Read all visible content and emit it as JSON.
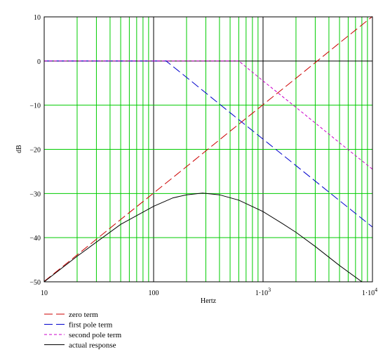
{
  "chart_data": {
    "type": "line",
    "xscale": "log",
    "xlim": [
      10,
      10000
    ],
    "ylim": [
      -50,
      10
    ],
    "xlabel": "Hertz",
    "ylabel": "dB",
    "grid": true,
    "grid_color": "#00cc00",
    "legend_position": "bottom-left",
    "x_tick_labels": [
      {
        "value": 10,
        "label": "10"
      },
      {
        "value": 100,
        "label": "100"
      },
      {
        "value": 1000,
        "label": "1·10",
        "exp": "3"
      },
      {
        "value": 10000,
        "label": "1·10",
        "exp": "4"
      }
    ],
    "y_ticks": [
      {
        "value": 10,
        "label": "10"
      },
      {
        "value": 0,
        "label": "0"
      },
      {
        "value": -10,
        "label": "−10"
      },
      {
        "value": -20,
        "label": "−20"
      },
      {
        "value": -30,
        "label": "−30"
      },
      {
        "value": -40,
        "label": "−40"
      },
      {
        "value": -50,
        "label": "−50"
      }
    ],
    "series": [
      {
        "name": "zero term",
        "color": "#cc0000",
        "dash": "long-dash",
        "x": [
          10,
          20,
          50,
          100,
          200,
          500,
          1000,
          2000,
          5000,
          10000
        ],
        "y": [
          -49.9,
          -43.9,
          -35.9,
          -29.9,
          -23.9,
          -15.9,
          -9.9,
          -3.9,
          4.1,
          10.1
        ]
      },
      {
        "name": "first pole term",
        "color": "#0000cc",
        "dash": "long-dash",
        "x": [
          10,
          50,
          100,
          130,
          200,
          500,
          1000,
          2000,
          5000,
          10000
        ],
        "y": [
          0,
          0,
          0,
          0,
          -3.7,
          -11.7,
          -17.7,
          -23.7,
          -31.6,
          -37.6
        ]
      },
      {
        "name": "second pole term",
        "color": "#cc00cc",
        "dash": "short-dash",
        "x": [
          10,
          100,
          500,
          600,
          1000,
          2000,
          5000,
          10000
        ],
        "y": [
          0,
          0,
          0,
          0,
          -4.5,
          -10.5,
          -18.5,
          -24.5
        ]
      },
      {
        "name": "actual response",
        "color": "#000000",
        "dash": "solid",
        "x": [
          10,
          20,
          50,
          100,
          150,
          200,
          280,
          400,
          600,
          1000,
          1500,
          2000,
          3000,
          5000,
          8000
        ],
        "y": [
          -50,
          -44.2,
          -37,
          -32.9,
          -31,
          -30.3,
          -29.9,
          -30.3,
          -31.5,
          -34.1,
          -36.8,
          -38.8,
          -42,
          -46.3,
          -50
        ]
      }
    ]
  }
}
